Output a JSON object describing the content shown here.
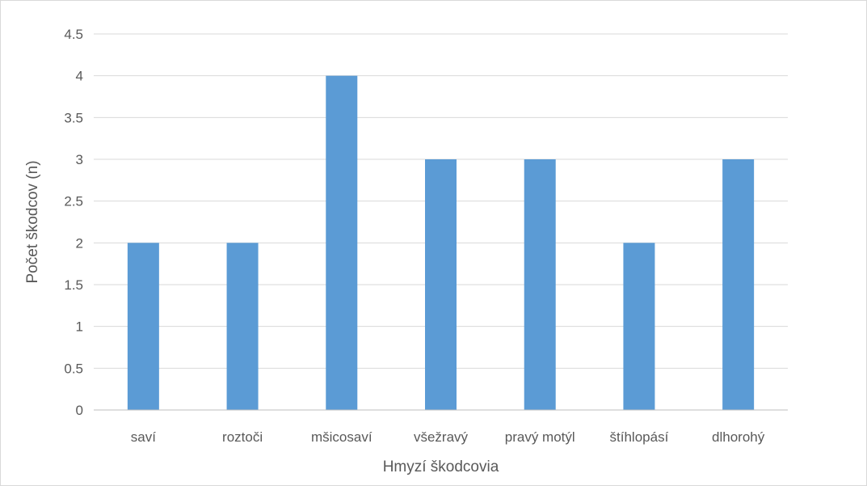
{
  "chart_data": {
    "type": "bar",
    "title": "",
    "categories": [
      "saví",
      "roztoči",
      "mšicosaví",
      "všežravý",
      "pravý motýl",
      "štíhlopásí",
      "dlhorohý"
    ],
    "values": [
      2,
      2,
      4,
      3,
      3,
      2,
      3
    ],
    "xlabel": "Hmyzí škodcovia",
    "ylabel": "Počet škodcov (n)",
    "ylim": [
      0,
      4.5
    ],
    "yticks": [
      "0",
      "0.5",
      "1",
      "1.5",
      "2",
      "2.5",
      "3",
      "3.5",
      "4",
      "4.5"
    ],
    "grid": true,
    "bar_color": "#5b9bd5",
    "grid_color": "#d9d9d9",
    "axis_color": "#bfbfbf",
    "legend": "none"
  }
}
